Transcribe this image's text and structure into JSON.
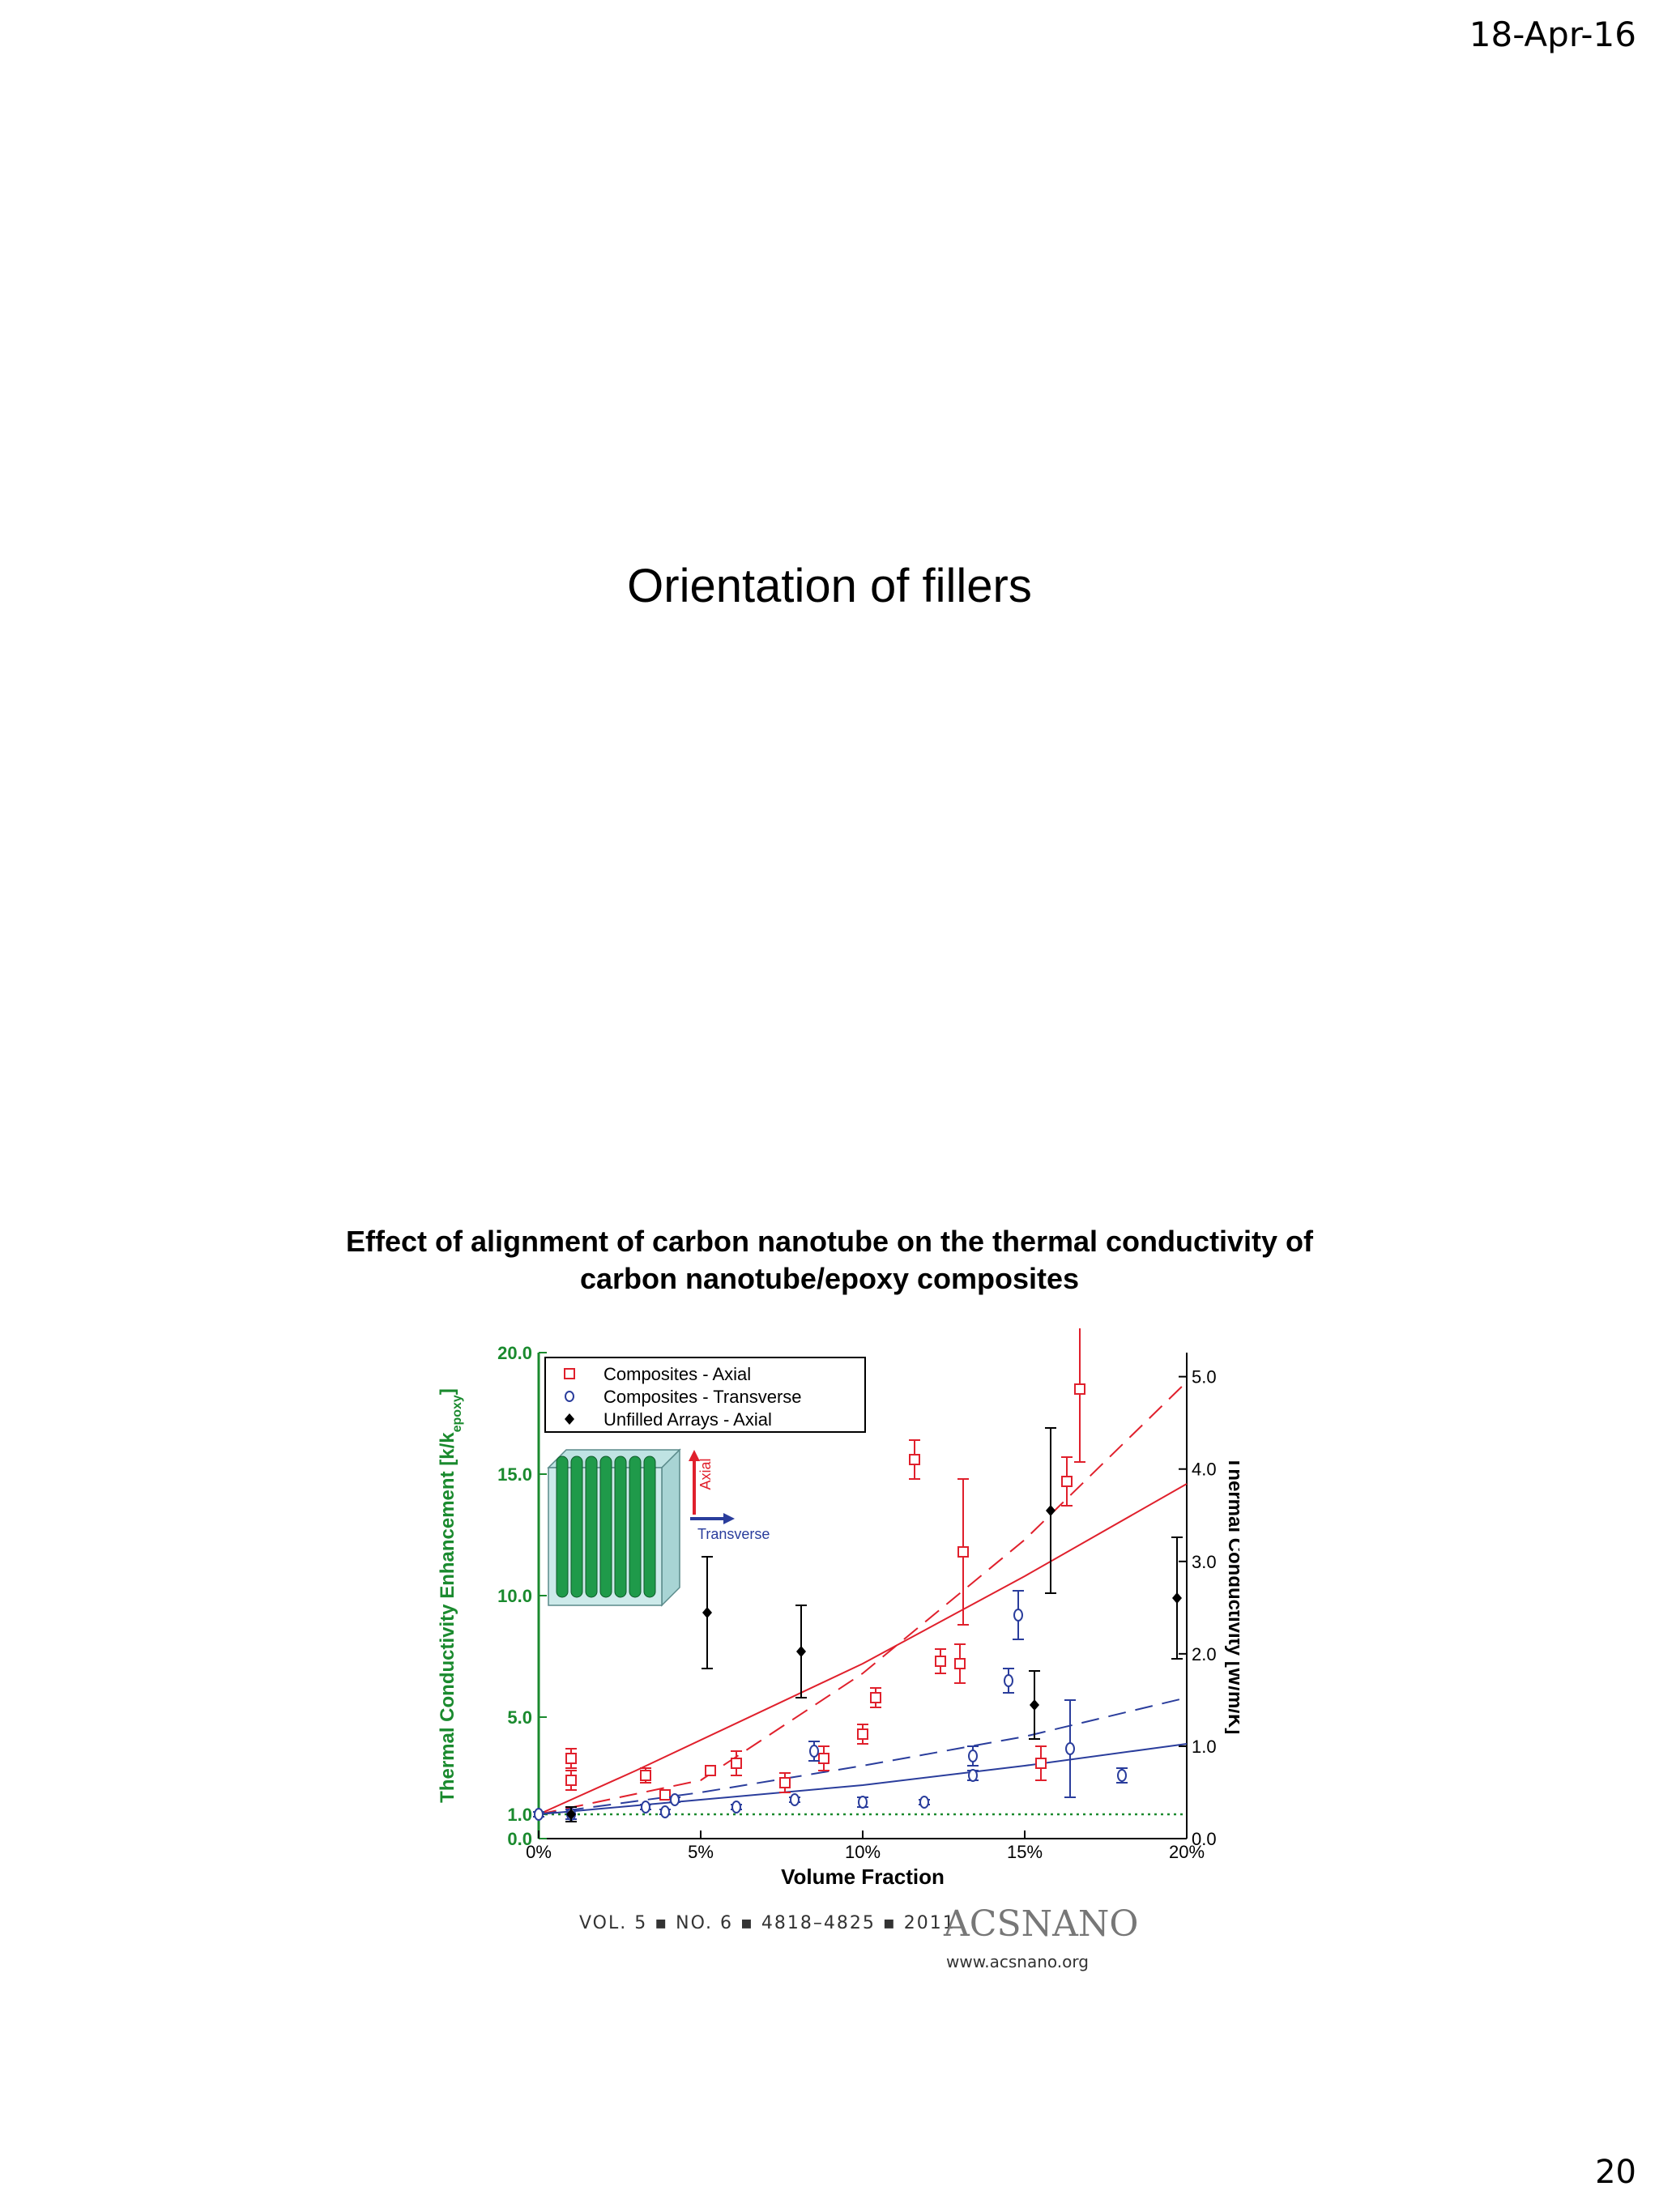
{
  "slide": {
    "date": "18-Apr-16",
    "title": "Orientation of fillers",
    "caption_line1": "Effect of alignment of carbon nanotube on the thermal conductivity of",
    "caption_line2": "carbon nanotube/epoxy composites",
    "page_number": "20"
  },
  "citation": {
    "volume_info": "VOL. 5 ▪ NO. 6 ▪ 4818–4825 ▪ 2011",
    "journal": "ACSNANO",
    "url": "www.acsnano.org"
  },
  "chart_data": {
    "type": "scatter",
    "xlabel": "Volume Fraction",
    "ylabel": "Thermal Conductivity Enhancement [k/k",
    "ylabel_sub": "epoxy",
    "ylabel_end": "]",
    "y2label": "Thermal Conductivity [W/m/K]",
    "xlim": [
      0,
      20
    ],
    "ylim": [
      0,
      20
    ],
    "y2lim": [
      0,
      5.26
    ],
    "x_ticks": [
      "0%",
      "5%",
      "10%",
      "15%",
      "20%"
    ],
    "y_ticks": [
      "0.0",
      "1.0",
      "5.0",
      "10.0",
      "15.0",
      "20.0"
    ],
    "y_tick_values": [
      0,
      1,
      5,
      10,
      15,
      20
    ],
    "y2_ticks": [
      "0.0",
      "1.0",
      "2.0",
      "3.0",
      "4.0",
      "5.0"
    ],
    "colors": {
      "axial": "#e0202c",
      "transverse": "#2a3d9c",
      "unfilled": "#000000",
      "left_axis": "#1a8a2e",
      "reference": "#1a8a2e"
    },
    "inset": {
      "axial_label": "Axial",
      "transverse_label": "Transverse"
    },
    "series": [
      {
        "name": "Composites - Axial",
        "marker": "square",
        "points": [
          [
            1,
            2.4,
            0.4
          ],
          [
            1,
            3.3,
            0.4
          ],
          [
            3.3,
            2.6,
            0.3
          ],
          [
            3.9,
            1.8,
            0.2
          ],
          [
            5.3,
            2.8,
            0.2
          ],
          [
            6.1,
            3.1,
            0.5
          ],
          [
            7.6,
            2.3,
            0.4
          ],
          [
            8.8,
            3.3,
            0.5
          ],
          [
            10,
            4.3,
            0.4
          ],
          [
            10.4,
            5.8,
            0.4
          ],
          [
            11.6,
            15.6,
            0.8
          ],
          [
            12.4,
            7.3,
            0.5
          ],
          [
            13.0,
            7.2,
            0.8
          ],
          [
            13.1,
            11.8,
            3.0
          ],
          [
            15.5,
            3.1,
            0.7
          ],
          [
            16.3,
            14.7,
            1.0
          ],
          [
            16.7,
            18.5,
            3.0
          ]
        ]
      },
      {
        "name": "Composites - Transverse",
        "marker": "circle",
        "points": [
          [
            0,
            1.0,
            0.1
          ],
          [
            1,
            1.0,
            0.2
          ],
          [
            3.3,
            1.3,
            0.1
          ],
          [
            3.9,
            1.1,
            0.1
          ],
          [
            4.2,
            1.6,
            0.1
          ],
          [
            6.1,
            1.3,
            0.1
          ],
          [
            7.9,
            1.6,
            0.1
          ],
          [
            8.5,
            3.6,
            0.4
          ],
          [
            10,
            1.5,
            0.2
          ],
          [
            11.9,
            1.5,
            0.1
          ],
          [
            13.4,
            2.6,
            0.2
          ],
          [
            13.4,
            3.4,
            0.4
          ],
          [
            14.5,
            6.5,
            0.5
          ],
          [
            14.8,
            9.2,
            1.0
          ],
          [
            16.4,
            3.7,
            2.0
          ],
          [
            18,
            2.6,
            0.3
          ]
        ]
      },
      {
        "name": "Unfilled Arrays - Axial",
        "marker": "diamond",
        "points": [
          [
            1,
            1.0,
            0.3
          ],
          [
            5.2,
            9.3,
            2.3
          ],
          [
            8.1,
            7.7,
            1.9
          ],
          [
            15.3,
            5.5,
            1.4
          ],
          [
            15.8,
            13.5,
            3.4
          ],
          [
            19.7,
            9.9,
            2.5
          ]
        ]
      }
    ],
    "fit_lines": [
      {
        "series": "Composites - Axial",
        "style": "solid",
        "points": [
          [
            0,
            1.0
          ],
          [
            3,
            2.8
          ],
          [
            10,
            7.2
          ],
          [
            15,
            10.8
          ],
          [
            20,
            14.6
          ]
        ]
      },
      {
        "series": "Composites - Axial",
        "style": "dashed",
        "points": [
          [
            0,
            1.0
          ],
          [
            5,
            2.4
          ],
          [
            10,
            6.8
          ],
          [
            15,
            12.3
          ],
          [
            20,
            18.8
          ]
        ]
      },
      {
        "series": "Composites - Transverse",
        "style": "solid",
        "points": [
          [
            0,
            1.0
          ],
          [
            5,
            1.6
          ],
          [
            10,
            2.2
          ],
          [
            15,
            3.0
          ],
          [
            20,
            3.9
          ]
        ]
      },
      {
        "series": "Composites - Transverse",
        "style": "dashed",
        "points": [
          [
            0,
            1.0
          ],
          [
            5,
            1.9
          ],
          [
            10,
            3.0
          ],
          [
            15,
            4.2
          ],
          [
            20,
            5.8
          ]
        ]
      }
    ],
    "reference_line": {
      "y": 1.0,
      "style": "dotted"
    }
  }
}
